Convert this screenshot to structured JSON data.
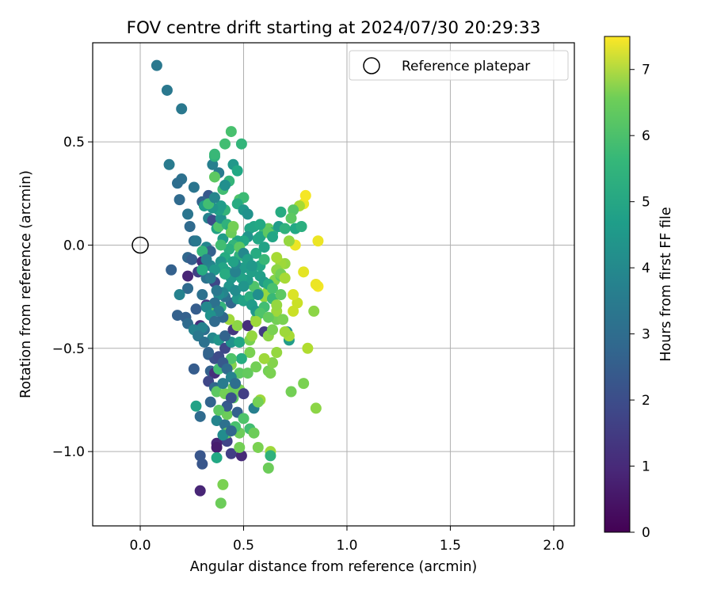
{
  "chart_data": {
    "type": "scatter",
    "title": "FOV centre drift starting at 2024/07/30 20:29:33",
    "xlabel": "Angular distance from reference (arcmin)",
    "ylabel": "Rotation from reference (arcmin)",
    "xlim": [
      -0.23,
      2.1
    ],
    "ylim": [
      -1.36,
      0.98
    ],
    "xticks": [
      0.0,
      0.5,
      1.0,
      1.5,
      2.0
    ],
    "xtick_labels": [
      "0.0",
      "0.5",
      "1.0",
      "1.5",
      "2.0"
    ],
    "yticks": [
      -1.0,
      -0.5,
      0.0,
      0.5
    ],
    "ytick_labels": [
      "−1.0",
      "−0.5",
      "0.0",
      "0.5"
    ],
    "grid": true,
    "legend": {
      "placement": "top-right",
      "entries": [
        {
          "label": "Reference platepar",
          "marker": "open-circle"
        }
      ]
    },
    "reference_point": {
      "x": 0.0,
      "y": 0.0
    },
    "colorbar": {
      "label": "Hours from first FF file",
      "colormap": "viridis",
      "range": [
        0,
        7.5
      ],
      "ticks": [
        0,
        1,
        2,
        3,
        4,
        5,
        6,
        7
      ],
      "tick_labels": [
        "0",
        "1",
        "2",
        "3",
        "4",
        "5",
        "6",
        "7"
      ]
    },
    "points": [
      [
        0.08,
        0.87,
        3.0
      ],
      [
        0.13,
        0.75,
        3.0
      ],
      [
        0.2,
        0.66,
        3.0
      ],
      [
        0.14,
        0.39,
        3.1
      ],
      [
        0.2,
        0.32,
        2.8
      ],
      [
        0.18,
        0.3,
        2.7
      ],
      [
        0.26,
        0.28,
        2.9
      ],
      [
        0.33,
        0.24,
        2.1
      ],
      [
        0.19,
        0.22,
        2.6
      ],
      [
        0.3,
        0.21,
        2.4
      ],
      [
        0.31,
        0.19,
        4.1
      ],
      [
        0.23,
        0.15,
        2.9
      ],
      [
        0.33,
        0.13,
        3.3
      ],
      [
        0.35,
        0.12,
        1.7
      ],
      [
        0.24,
        0.09,
        2.6
      ],
      [
        0.26,
        0.02,
        2.7
      ],
      [
        0.27,
        0.02,
        3.0
      ],
      [
        0.32,
        -0.01,
        3.4
      ],
      [
        0.34,
        -0.03,
        2.3
      ],
      [
        0.23,
        -0.06,
        2.5
      ],
      [
        0.25,
        -0.07,
        2.2
      ],
      [
        0.3,
        -0.08,
        1.0
      ],
      [
        0.34,
        -0.1,
        3.4
      ],
      [
        0.15,
        -0.12,
        2.3
      ],
      [
        0.23,
        -0.15,
        0.8
      ],
      [
        0.28,
        -0.13,
        1.4
      ],
      [
        0.32,
        -0.16,
        2.8
      ],
      [
        0.36,
        -0.18,
        1.6
      ],
      [
        0.23,
        -0.21,
        2.6
      ],
      [
        0.19,
        -0.24,
        3.3
      ],
      [
        0.3,
        -0.24,
        2.8
      ],
      [
        0.32,
        -0.29,
        1.2
      ],
      [
        0.34,
        -0.3,
        5.6
      ],
      [
        0.27,
        -0.31,
        2.2
      ],
      [
        0.18,
        -0.34,
        2.3
      ],
      [
        0.22,
        -0.35,
        2.3
      ],
      [
        0.23,
        -0.38,
        2.6
      ],
      [
        0.29,
        -0.39,
        1.0
      ],
      [
        0.31,
        -0.41,
        2.7
      ],
      [
        0.26,
        -0.41,
        3.3
      ],
      [
        0.35,
        -0.45,
        3.5
      ],
      [
        0.38,
        -0.46,
        3.9
      ],
      [
        0.33,
        -0.53,
        2.3
      ],
      [
        0.36,
        -0.55,
        1.9
      ],
      [
        0.34,
        -0.61,
        2.3
      ],
      [
        0.26,
        -0.6,
        2.2
      ],
      [
        0.36,
        -0.62,
        1.0
      ],
      [
        0.38,
        -0.6,
        5.2
      ],
      [
        0.33,
        -0.66,
        1.6
      ],
      [
        0.36,
        -0.69,
        2.5
      ],
      [
        0.37,
        -0.71,
        5.6
      ],
      [
        0.34,
        -0.76,
        2.4
      ],
      [
        0.27,
        -0.78,
        4.3
      ],
      [
        0.29,
        -0.83,
        2.6
      ],
      [
        0.37,
        -0.85,
        3.4
      ],
      [
        0.41,
        -0.87,
        2.8
      ],
      [
        0.42,
        -0.95,
        1.5
      ],
      [
        0.37,
        -0.96,
        0.8
      ],
      [
        0.37,
        -0.98,
        0.6
      ],
      [
        0.29,
        -1.02,
        2.0
      ],
      [
        0.37,
        -1.03,
        4.5
      ],
      [
        0.3,
        -1.06,
        2.0
      ],
      [
        0.44,
        -1.01,
        1.4
      ],
      [
        0.49,
        -1.02,
        0.9
      ],
      [
        0.29,
        -1.19,
        0.8
      ],
      [
        0.39,
        -1.25,
        5.8
      ],
      [
        0.4,
        -1.16,
        6.0
      ],
      [
        0.48,
        -0.98,
        5.9
      ],
      [
        0.63,
        -1.0,
        6.4
      ],
      [
        0.62,
        -1.08,
        5.8
      ],
      [
        0.63,
        -1.02,
        4.8
      ],
      [
        0.57,
        -0.98,
        6.0
      ],
      [
        0.48,
        -0.91,
        5.8
      ],
      [
        0.42,
        -0.91,
        5.7
      ],
      [
        0.46,
        -0.88,
        5.3
      ],
      [
        0.53,
        -0.89,
        5.2
      ],
      [
        0.55,
        -0.91,
        5.8
      ],
      [
        0.55,
        -0.79,
        3.2
      ],
      [
        0.58,
        -0.75,
        6.4
      ],
      [
        0.57,
        -0.76,
        5.9
      ],
      [
        0.42,
        -0.82,
        5.8
      ],
      [
        0.41,
        -0.72,
        5.9
      ],
      [
        0.45,
        -0.74,
        5.6
      ],
      [
        0.48,
        -0.7,
        6.0
      ],
      [
        0.5,
        -0.72,
        1.4
      ],
      [
        0.45,
        -0.69,
        5.8
      ],
      [
        0.48,
        -0.62,
        5.6
      ],
      [
        0.44,
        -0.58,
        6.1
      ],
      [
        0.52,
        -0.62,
        5.7
      ],
      [
        0.56,
        -0.59,
        5.9
      ],
      [
        0.62,
        -0.61,
        5.9
      ],
      [
        0.63,
        -0.62,
        6.0
      ],
      [
        0.64,
        -0.57,
        6.1
      ],
      [
        0.6,
        -0.55,
        6.4
      ],
      [
        0.66,
        -0.52,
        6.3
      ],
      [
        0.53,
        -0.52,
        6.0
      ],
      [
        0.49,
        -0.55,
        4.6
      ],
      [
        0.44,
        -0.55,
        5.4
      ],
      [
        0.41,
        -0.5,
        1.6
      ],
      [
        0.44,
        -0.47,
        3.8
      ],
      [
        0.48,
        -0.47,
        4.4
      ],
      [
        0.41,
        -0.44,
        2.4
      ],
      [
        0.45,
        -0.41,
        1.2
      ],
      [
        0.47,
        -0.39,
        6.2
      ],
      [
        0.43,
        -0.36,
        6.4
      ],
      [
        0.4,
        -0.35,
        2.5
      ],
      [
        0.39,
        -0.3,
        4.9
      ],
      [
        0.44,
        -0.28,
        2.5
      ],
      [
        0.41,
        -0.25,
        2.8
      ],
      [
        0.47,
        -0.26,
        4.0
      ],
      [
        0.5,
        -0.27,
        4.3
      ],
      [
        0.52,
        -0.39,
        1.0
      ],
      [
        0.53,
        -0.46,
        6.0
      ],
      [
        0.54,
        -0.44,
        6.3
      ],
      [
        0.56,
        -0.36,
        6.0
      ],
      [
        0.6,
        -0.42,
        1.3
      ],
      [
        0.62,
        -0.44,
        6.2
      ],
      [
        0.64,
        -0.41,
        6.0
      ],
      [
        0.66,
        -0.36,
        5.9
      ],
      [
        0.66,
        -0.32,
        6.4
      ],
      [
        0.69,
        -0.36,
        6.0
      ],
      [
        0.71,
        -0.42,
        3.7
      ],
      [
        0.72,
        -0.46,
        4.1
      ],
      [
        0.72,
        -0.44,
        6.5
      ],
      [
        0.7,
        -0.42,
        6.4
      ],
      [
        0.74,
        -0.32,
        6.9
      ],
      [
        0.76,
        -0.28,
        6.9
      ],
      [
        0.74,
        -0.24,
        7.1
      ],
      [
        0.81,
        -0.5,
        6.6
      ],
      [
        0.85,
        -0.79,
        6.2
      ],
      [
        0.79,
        -0.67,
        6.0
      ],
      [
        0.73,
        -0.71,
        5.9
      ],
      [
        0.84,
        -0.32,
        6.2
      ],
      [
        0.86,
        -0.2,
        7.4
      ],
      [
        0.85,
        -0.19,
        7.3
      ],
      [
        0.79,
        -0.13,
        7.2
      ],
      [
        0.86,
        0.02,
        7.3
      ],
      [
        0.75,
        0.0,
        7.3
      ],
      [
        0.79,
        0.2,
        7.3
      ],
      [
        0.8,
        0.24,
        7.4
      ],
      [
        0.77,
        0.19,
        6.5
      ],
      [
        0.74,
        0.17,
        5.5
      ],
      [
        0.73,
        0.13,
        5.6
      ],
      [
        0.72,
        0.02,
        6.3
      ],
      [
        0.7,
        -0.09,
        6.3
      ],
      [
        0.68,
        -0.09,
        6.4
      ],
      [
        0.66,
        -0.06,
        6.5
      ],
      [
        0.65,
        -0.17,
        6.1
      ],
      [
        0.68,
        -0.15,
        5.6
      ],
      [
        0.62,
        -0.22,
        6.3
      ],
      [
        0.6,
        -0.25,
        6.3
      ],
      [
        0.57,
        -0.23,
        5.7
      ],
      [
        0.55,
        -0.2,
        5.4
      ],
      [
        0.53,
        -0.25,
        4.7
      ],
      [
        0.52,
        -0.17,
        4.1
      ],
      [
        0.58,
        -0.1,
        4.5
      ],
      [
        0.6,
        -0.07,
        5.0
      ],
      [
        0.56,
        -0.04,
        4.6
      ],
      [
        0.57,
        0.03,
        4.5
      ],
      [
        0.6,
        0.06,
        5.1
      ],
      [
        0.62,
        0.08,
        5.7
      ],
      [
        0.64,
        0.06,
        4.7
      ],
      [
        0.67,
        0.09,
        4.1
      ],
      [
        0.68,
        0.16,
        4.6
      ],
      [
        0.7,
        0.08,
        4.8
      ],
      [
        0.75,
        0.08,
        4.5
      ],
      [
        0.78,
        0.09,
        4.7
      ],
      [
        0.53,
        0.08,
        4.4
      ],
      [
        0.52,
        0.04,
        3.9
      ],
      [
        0.5,
        0.02,
        4.5
      ],
      [
        0.47,
        0.02,
        4.4
      ],
      [
        0.45,
        0.0,
        4.9
      ],
      [
        0.43,
        -0.02,
        4.7
      ],
      [
        0.41,
        -0.06,
        4.6
      ],
      [
        0.39,
        -0.08,
        3.9
      ],
      [
        0.4,
        -0.11,
        4.4
      ],
      [
        0.42,
        -0.13,
        4.3
      ],
      [
        0.44,
        -0.16,
        4.0
      ],
      [
        0.43,
        -0.2,
        3.9
      ],
      [
        0.46,
        -0.22,
        3.6
      ],
      [
        0.4,
        -0.23,
        3.4
      ],
      [
        0.38,
        -0.24,
        3.6
      ],
      [
        0.37,
        -0.22,
        3.0
      ],
      [
        0.36,
        -0.28,
        2.8
      ],
      [
        0.38,
        -0.32,
        3.1
      ],
      [
        0.41,
        -0.14,
        4.6
      ],
      [
        0.49,
        -0.16,
        4.3
      ],
      [
        0.5,
        -0.11,
        4.1
      ],
      [
        0.51,
        -0.06,
        4.7
      ],
      [
        0.48,
        -0.05,
        4.8
      ],
      [
        0.5,
        -0.2,
        3.9
      ],
      [
        0.54,
        -0.13,
        4.2
      ],
      [
        0.54,
        -0.29,
        4.1
      ],
      [
        0.56,
        -0.32,
        4.0
      ],
      [
        0.57,
        -0.24,
        3.7
      ],
      [
        0.46,
        -0.13,
        3.3
      ],
      [
        0.46,
        -0.09,
        3.5
      ],
      [
        0.45,
        -0.08,
        4.3
      ],
      [
        0.4,
        0.03,
        4.1
      ],
      [
        0.39,
        0.0,
        5.2
      ],
      [
        0.37,
        0.08,
        4.3
      ],
      [
        0.38,
        0.09,
        5.4
      ],
      [
        0.39,
        0.13,
        3.8
      ],
      [
        0.41,
        0.17,
        4.9
      ],
      [
        0.38,
        0.17,
        4.2
      ],
      [
        0.39,
        0.19,
        4.1
      ],
      [
        0.42,
        0.1,
        4.8
      ],
      [
        0.44,
        0.08,
        4.6
      ],
      [
        0.44,
        0.06,
        5.8
      ],
      [
        0.45,
        0.09,
        5.9
      ],
      [
        0.35,
        0.18,
        3.9
      ],
      [
        0.33,
        0.2,
        5.2
      ],
      [
        0.36,
        0.23,
        3.4
      ],
      [
        0.4,
        0.27,
        5.2
      ],
      [
        0.43,
        0.31,
        4.9
      ],
      [
        0.41,
        0.29,
        3.7
      ],
      [
        0.38,
        0.35,
        3.1
      ],
      [
        0.36,
        0.33,
        5.6
      ],
      [
        0.35,
        0.39,
        3.2
      ],
      [
        0.36,
        0.43,
        4.8
      ],
      [
        0.36,
        0.44,
        5.0
      ],
      [
        0.45,
        0.39,
        4.0
      ],
      [
        0.47,
        0.36,
        4.5
      ],
      [
        0.41,
        0.49,
        5.2
      ],
      [
        0.49,
        0.49,
        4.9
      ],
      [
        0.44,
        0.55,
        5.3
      ],
      [
        0.48,
        0.22,
        5.4
      ],
      [
        0.5,
        0.23,
        5.1
      ],
      [
        0.47,
        0.2,
        4.6
      ],
      [
        0.5,
        0.17,
        4.0
      ],
      [
        0.52,
        0.15,
        3.8
      ],
      [
        0.55,
        0.09,
        4.4
      ],
      [
        0.58,
        0.1,
        4.5
      ],
      [
        0.58,
        0.04,
        4.4
      ],
      [
        0.6,
        -0.01,
        4.3
      ],
      [
        0.62,
        0.06,
        5.6
      ],
      [
        0.64,
        0.04,
        4.4
      ],
      [
        0.66,
        -0.12,
        6.2
      ],
      [
        0.68,
        -0.14,
        5.9
      ],
      [
        0.7,
        -0.16,
        6.5
      ],
      [
        0.48,
        -0.01,
        5.6
      ],
      [
        0.5,
        -0.04,
        3.5
      ],
      [
        0.52,
        -0.07,
        4.2
      ],
      [
        0.54,
        -0.1,
        4.0
      ],
      [
        0.58,
        -0.15,
        4.2
      ],
      [
        0.6,
        -0.18,
        4.1
      ],
      [
        0.62,
        -0.19,
        4.6
      ],
      [
        0.64,
        -0.21,
        5.3
      ],
      [
        0.64,
        -0.26,
        5.0
      ],
      [
        0.6,
        -0.3,
        5.2
      ],
      [
        0.58,
        -0.33,
        5.4
      ],
      [
        0.56,
        -0.37,
        6.4
      ],
      [
        0.62,
        -0.35,
        5.7
      ],
      [
        0.66,
        -0.29,
        6.3
      ],
      [
        0.68,
        -0.24,
        5.6
      ],
      [
        0.3,
        -0.03,
        4.9
      ],
      [
        0.32,
        -0.07,
        3.2
      ],
      [
        0.36,
        -0.12,
        4.0
      ],
      [
        0.34,
        -0.16,
        3.1
      ],
      [
        0.3,
        -0.12,
        4.6
      ],
      [
        0.32,
        -0.3,
        3.5
      ],
      [
        0.34,
        -0.34,
        3.8
      ],
      [
        0.36,
        -0.37,
        2.6
      ],
      [
        0.3,
        -0.4,
        3.3
      ],
      [
        0.28,
        -0.44,
        3.0
      ],
      [
        0.31,
        -0.47,
        2.8
      ],
      [
        0.33,
        -0.52,
        2.4
      ],
      [
        0.38,
        -0.54,
        1.7
      ],
      [
        0.4,
        -0.57,
        2.1
      ],
      [
        0.42,
        -0.6,
        2.6
      ],
      [
        0.44,
        -0.64,
        3.3
      ],
      [
        0.46,
        -0.67,
        2.7
      ],
      [
        0.4,
        -0.67,
        3.1
      ],
      [
        0.42,
        -0.78,
        2.1
      ],
      [
        0.44,
        -0.74,
        1.9
      ],
      [
        0.47,
        -0.81,
        2.3
      ],
      [
        0.5,
        -0.84,
        5.4
      ],
      [
        0.38,
        -0.8,
        5.6
      ],
      [
        0.4,
        -0.92,
        3.6
      ],
      [
        0.44,
        -0.9,
        2.5
      ]
    ]
  }
}
